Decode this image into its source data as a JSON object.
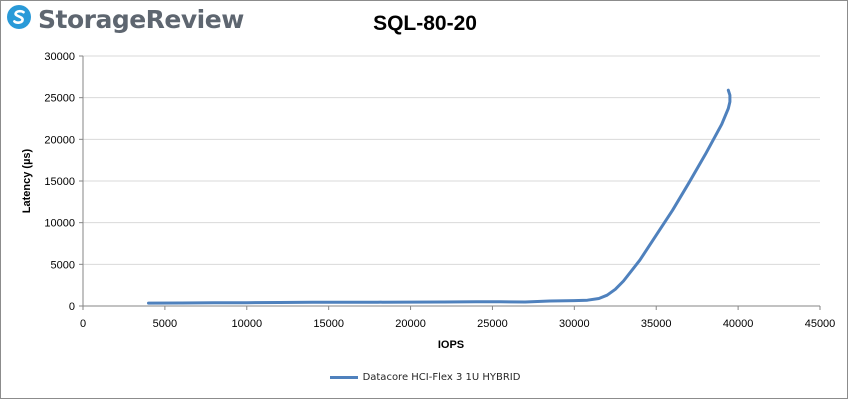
{
  "brand": {
    "name": "StorageReview",
    "logo_icon": "storagereview-logo-icon",
    "logo_color": "#2a9ad8"
  },
  "chart_data": {
    "type": "line",
    "title": "SQL-80-20",
    "xlabel": "IOPS",
    "ylabel": "Latency (µs)",
    "xlim": [
      0,
      45000
    ],
    "ylim": [
      0,
      30000
    ],
    "xticks": [
      "0",
      "5000",
      "10000",
      "15000",
      "20000",
      "25000",
      "30000",
      "35000",
      "40000",
      "45000"
    ],
    "yticks": [
      "0",
      "5000",
      "10000",
      "15000",
      "20000",
      "25000",
      "30000"
    ],
    "grid": true,
    "legend_position": "bottom",
    "series": [
      {
        "name": "Datacore HCI-Flex 3 1U HYBRID",
        "color": "#4f81bd",
        "x": [
          4000,
          6000,
          8000,
          10000,
          12000,
          14000,
          16000,
          18000,
          20000,
          22000,
          24000,
          25500,
          27000,
          28500,
          30000,
          30800,
          31500,
          32000,
          32500,
          33000,
          34000,
          35000,
          36000,
          37000,
          38000,
          39000,
          39400,
          39500,
          39500,
          39400
        ],
        "y": [
          350,
          360,
          380,
          400,
          420,
          440,
          450,
          460,
          470,
          480,
          500,
          510,
          480,
          600,
          650,
          700,
          900,
          1300,
          2000,
          3000,
          5500,
          8500,
          11500,
          14800,
          18200,
          21800,
          23700,
          24500,
          25300,
          25900
        ]
      }
    ]
  }
}
